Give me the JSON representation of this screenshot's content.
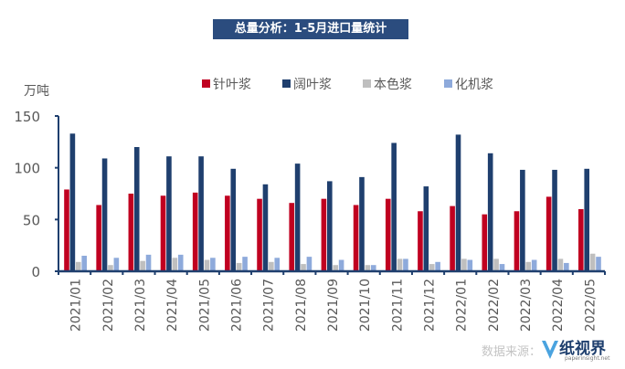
{
  "chart_data": {
    "type": "bar",
    "title": "总量分析：1-5月进口量统计",
    "unit_label": "万吨",
    "categories": [
      "2021/01",
      "2021/02",
      "2021/03",
      "2021/04",
      "2021/05",
      "2021/06",
      "2021/07",
      "2021/08",
      "2021/09",
      "2021/10",
      "2021/11",
      "2021/12",
      "2022/01",
      "2022/02",
      "2022/03",
      "2022/04",
      "2022/05"
    ],
    "series": [
      {
        "name": "针叶浆",
        "color": "#c00020",
        "values": [
          79,
          64,
          75,
          73,
          76,
          73,
          70,
          66,
          70,
          64,
          70,
          58,
          63,
          55,
          58,
          72,
          60
        ]
      },
      {
        "name": "阔叶浆",
        "color": "#1f3f6e",
        "values": [
          133,
          109,
          120,
          111,
          111,
          99,
          84,
          104,
          87,
          91,
          124,
          82,
          132,
          114,
          98,
          98,
          99
        ]
      },
      {
        "name": "本色浆",
        "color": "#bfbfbf",
        "values": [
          9,
          6,
          10,
          13,
          11,
          8,
          9,
          7,
          6,
          6,
          12,
          7,
          12,
          12,
          9,
          12,
          17
        ]
      },
      {
        "name": "化机浆",
        "color": "#8eaadb",
        "values": [
          15,
          13,
          16,
          16,
          13,
          14,
          13,
          14,
          11,
          6,
          12,
          9,
          11,
          7,
          11,
          8,
          14
        ]
      }
    ],
    "ylim": [
      0,
      150
    ],
    "yticks": [
      0,
      50,
      100,
      150
    ],
    "grid": false,
    "legend_position": "top"
  },
  "watermark": "数据来源：",
  "logo": {
    "name": "纸视界",
    "url": "paperinsight.net"
  }
}
